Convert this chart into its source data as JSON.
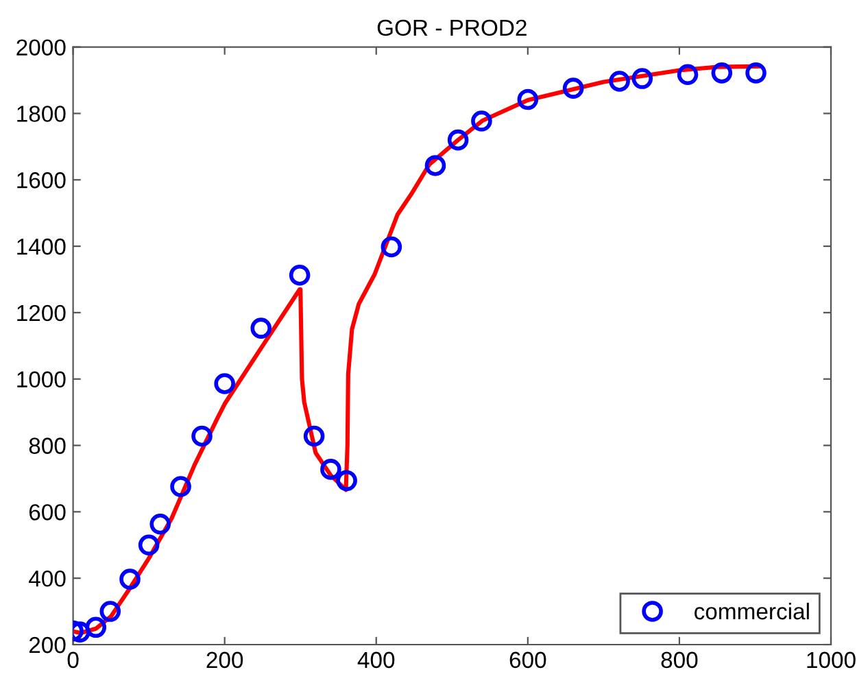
{
  "chart_data": {
    "type": "line",
    "title": "GOR - PROD2",
    "xlim": [
      0,
      1000
    ],
    "ylim": [
      200,
      2000
    ],
    "xticks": [
      0,
      200,
      400,
      600,
      800,
      1000
    ],
    "yticks": [
      200,
      400,
      600,
      800,
      1000,
      1200,
      1400,
      1600,
      1800,
      2000
    ],
    "grid": false,
    "legend": "bottom right",
    "series": [
      {
        "color": "#ff0000",
        "marker": "none",
        "line_style": "solid",
        "x": [
          0,
          10,
          30,
          50,
          75,
          100,
          130,
          160,
          190,
          200,
          250,
          299,
          300,
          302,
          305,
          320,
          340,
          360,
          362,
          363,
          368,
          377,
          398,
          428,
          446,
          470,
          508,
          540,
          600,
          700,
          800,
          850,
          905
        ],
        "values": [
          240,
          235,
          248,
          285,
          370,
          460,
          580,
          740,
          880,
          925,
          1100,
          1270,
          1270,
          1000,
          930,
          778,
          710,
          666,
          800,
          1015,
          1150,
          1226,
          1316,
          1495,
          1556,
          1646,
          1720,
          1778,
          1840,
          1895,
          1930,
          1940,
          1942
        ]
      },
      {
        "type": "scatter",
        "name": "commercial",
        "color": "#0000ff",
        "marker": "circle",
        "x": [
          0,
          9,
          30,
          49,
          75,
          100,
          115,
          142,
          170,
          200,
          248,
          299,
          318,
          340,
          361,
          420,
          478,
          508,
          539,
          600,
          660,
          721,
          751,
          811,
          856,
          901
        ],
        "values": [
          241,
          238,
          252,
          300,
          397,
          500,
          563,
          676,
          828,
          986,
          1153,
          1313,
          828,
          728,
          694,
          1398,
          1643,
          1720,
          1777,
          1842,
          1876,
          1897,
          1905,
          1917,
          1922,
          1922
        ]
      }
    ]
  }
}
